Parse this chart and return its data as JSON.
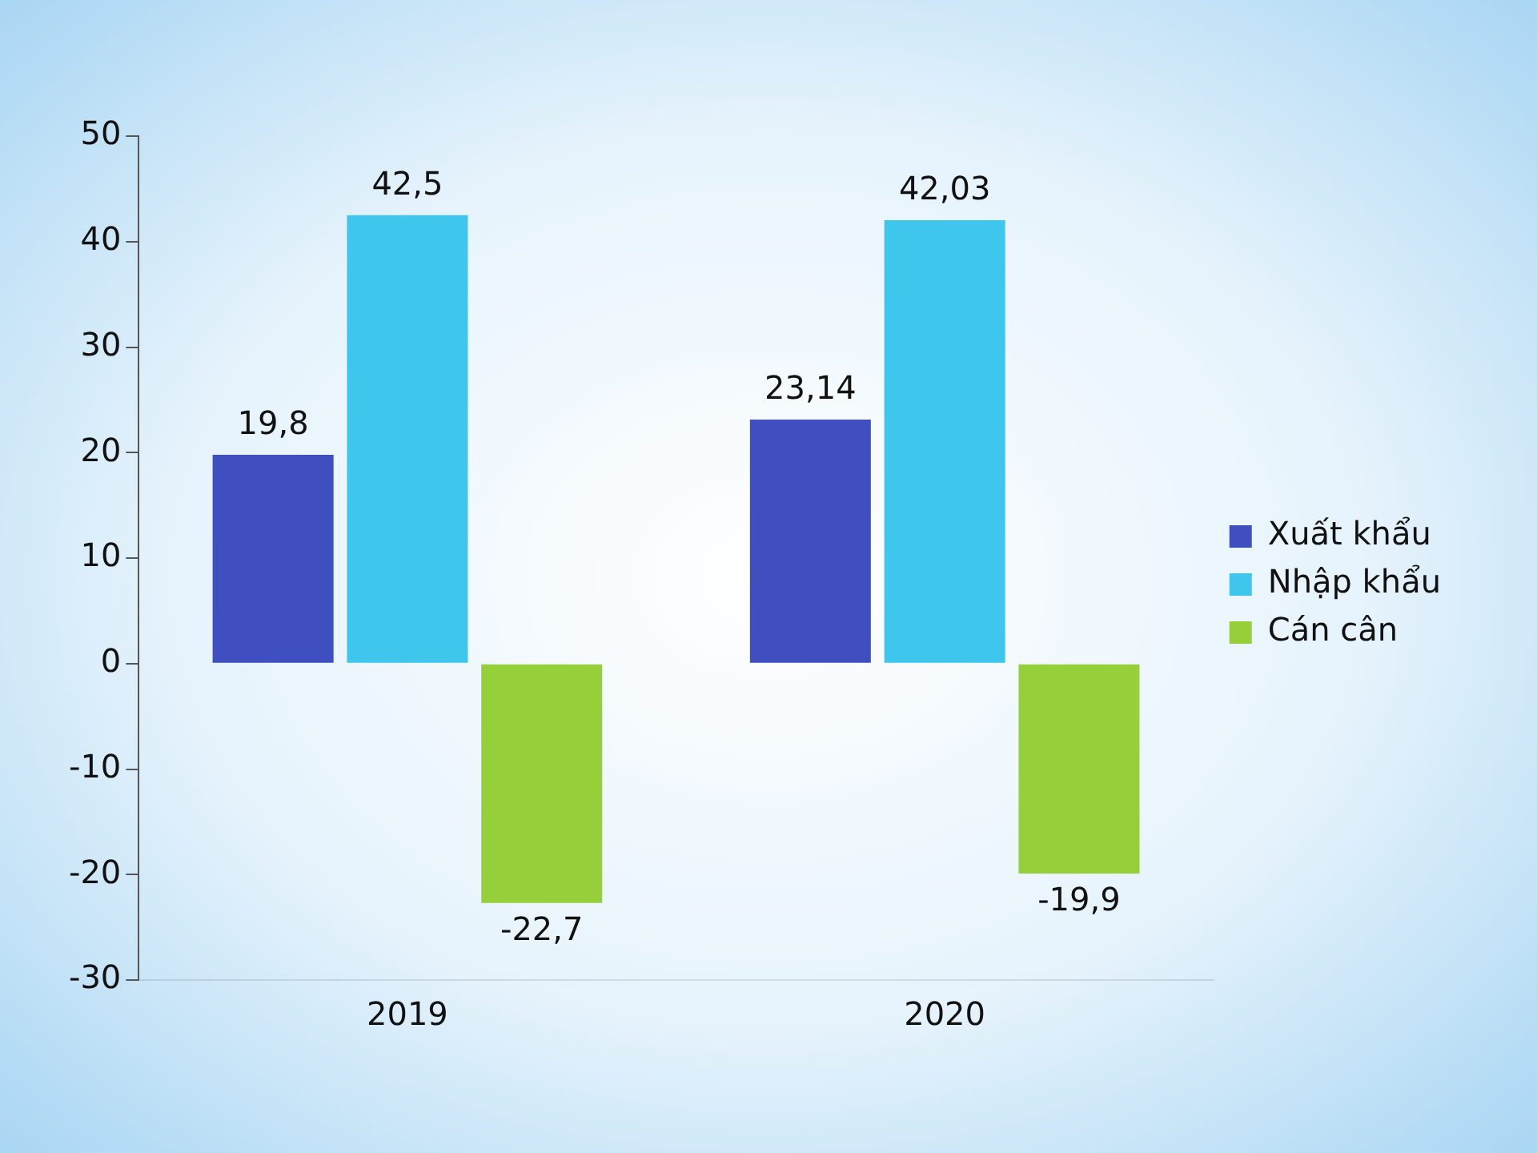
{
  "chart_data": {
    "type": "bar",
    "categories": [
      "2019",
      "2020"
    ],
    "series": [
      {
        "name": "Xuất khẩu",
        "color": "#3f4fc0",
        "values": [
          19.8,
          23.14
        ],
        "value_labels": [
          "19,8",
          "23,14"
        ]
      },
      {
        "name": "Nhập khẩu",
        "color": "#3ec6ec",
        "values": [
          42.5,
          42.03
        ],
        "value_labels": [
          "42,5",
          "42,03"
        ]
      },
      {
        "name": "Cán cân",
        "color": "#95d03a",
        "values": [
          -22.7,
          -19.9
        ],
        "value_labels": [
          "-22,7",
          "-19,9"
        ]
      }
    ],
    "ylim": [
      -30,
      50
    ],
    "yticks": [
      -30,
      -20,
      -10,
      0,
      10,
      20,
      30,
      40,
      50
    ],
    "grid": false,
    "legend": "right"
  }
}
